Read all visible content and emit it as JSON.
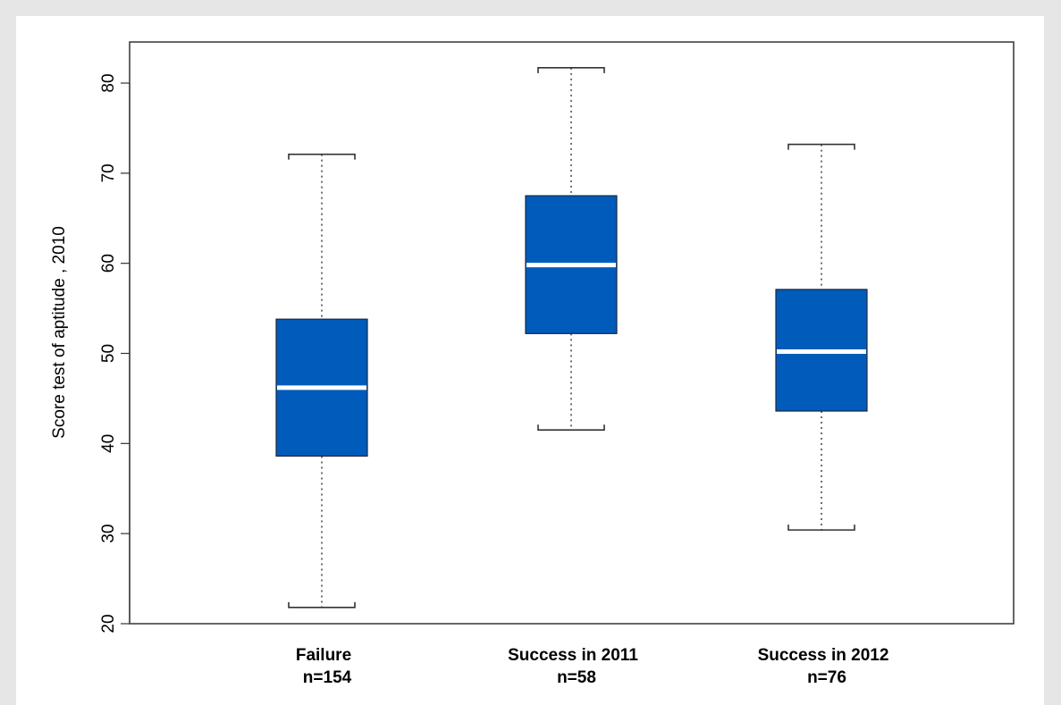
{
  "chart_data": {
    "type": "boxplot",
    "ylabel": "Score test of aptitude , 2010",
    "ylim": [
      20,
      80
    ],
    "yticks": [
      20,
      30,
      40,
      50,
      60,
      70,
      80
    ],
    "grid": false,
    "legend": "none",
    "categories": [
      {
        "label": "Failure",
        "sublabel": "n=154"
      },
      {
        "label": "Success in 2011",
        "sublabel": "n=58"
      },
      {
        "label": "Success in 2012",
        "sublabel": "n=76"
      }
    ],
    "boxes": [
      {
        "whisker_low": 21.8,
        "q1": 38.6,
        "median": 46.2,
        "q3": 53.8,
        "whisker_high": 72.1
      },
      {
        "whisker_low": 41.5,
        "q1": 52.2,
        "median": 59.8,
        "q3": 67.5,
        "whisker_high": 81.7
      },
      {
        "whisker_low": 30.4,
        "q1": 43.6,
        "median": 50.2,
        "q3": 57.1,
        "whisker_high": 73.2
      }
    ]
  },
  "colors": {
    "box_fill": "#005bbb",
    "median": "#ffffff",
    "lines": "#333333",
    "background": "#e6e6e6",
    "panel": "#ffffff"
  }
}
